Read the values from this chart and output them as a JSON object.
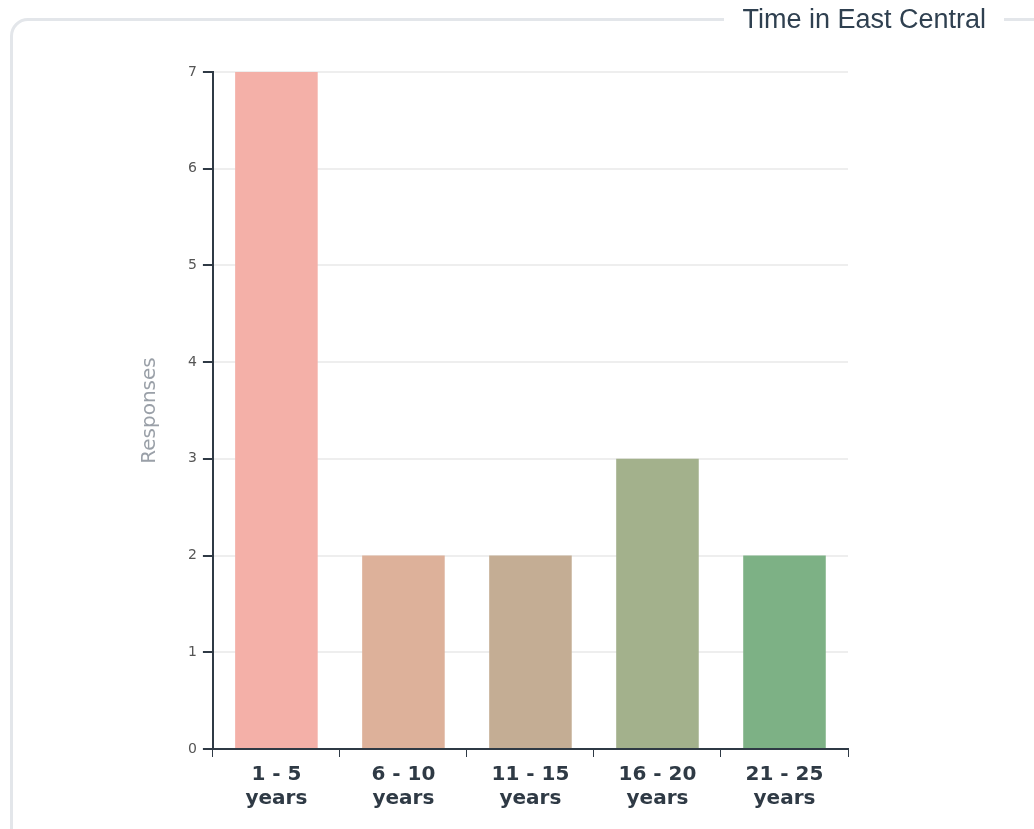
{
  "chart_data": {
    "type": "bar",
    "title": "Time in East Central",
    "ylabel": "Responses",
    "categories": [
      "1 - 5 years",
      "6 - 10 years",
      "11 - 15 years",
      "16 - 20 years",
      "21 - 25 years"
    ],
    "values": [
      7,
      2,
      2,
      3,
      2
    ],
    "colors": [
      "#f4b0a8",
      "#ddb19a",
      "#c4ad94",
      "#a3b18c",
      "#7db185"
    ],
    "ylim": [
      0,
      7
    ],
    "yticks": [
      0,
      1,
      2,
      3,
      4,
      5,
      6,
      7
    ],
    "grid": "y",
    "legend": false
  }
}
